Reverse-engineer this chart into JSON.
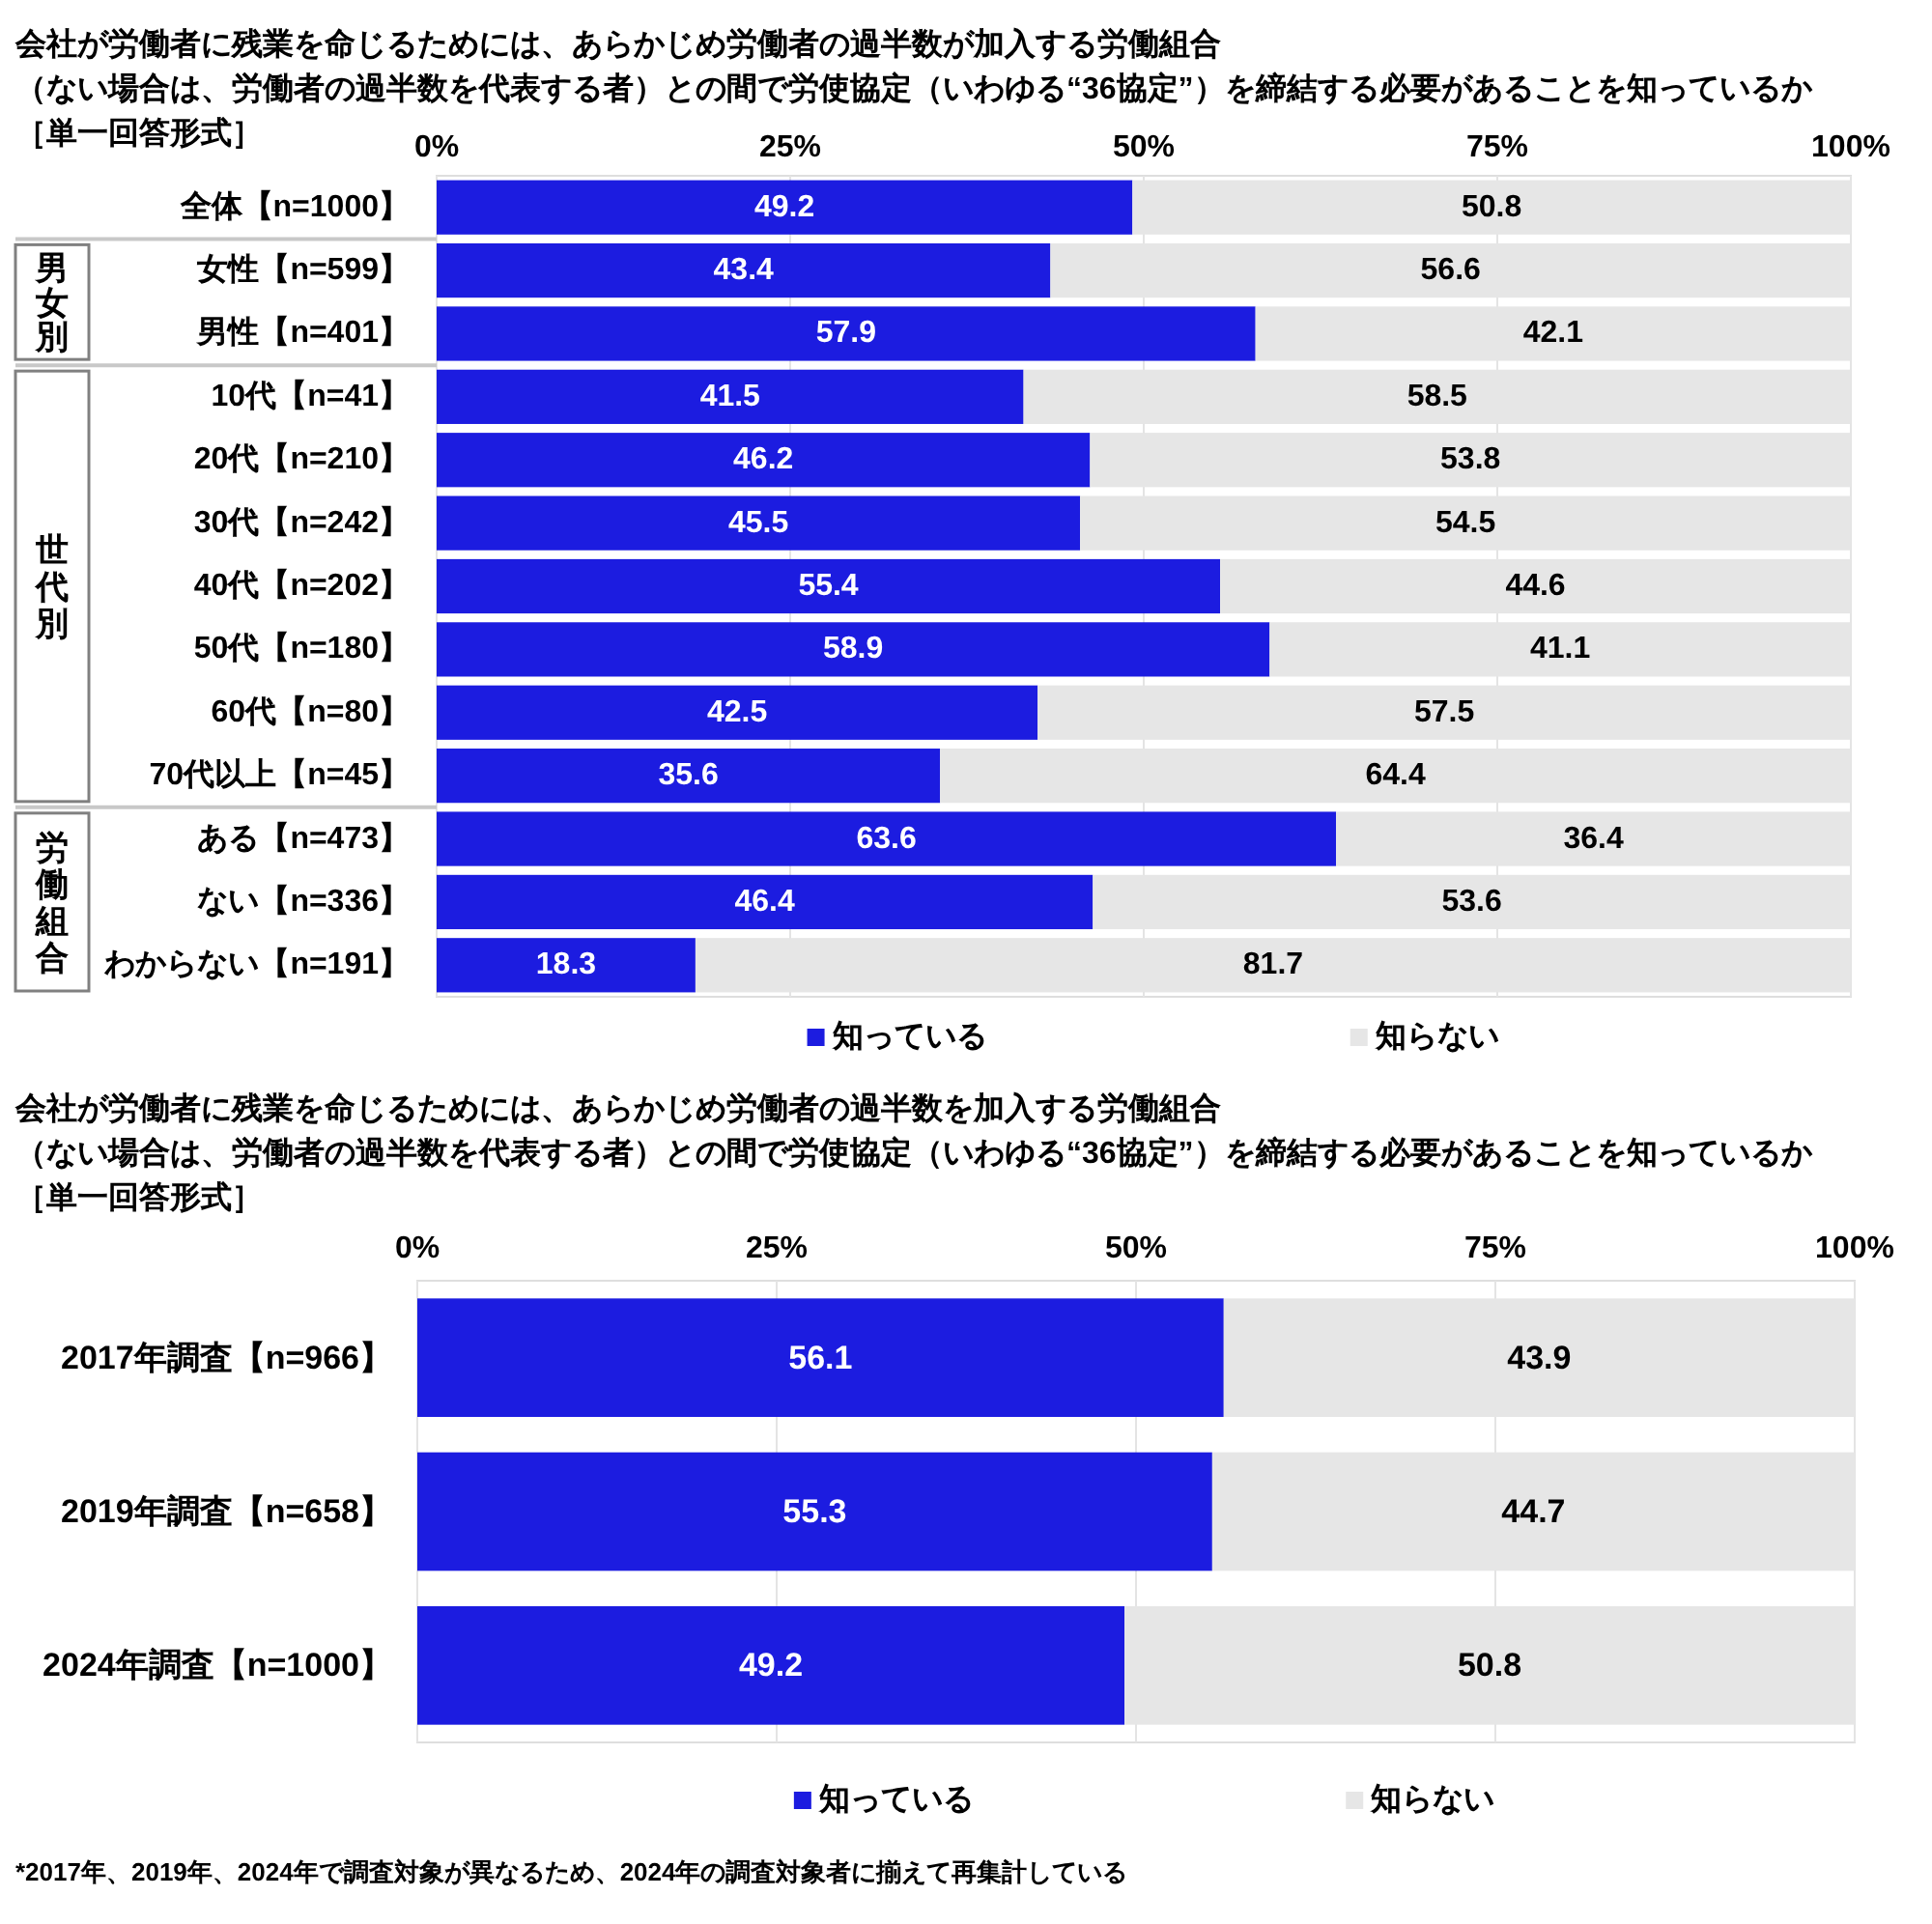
{
  "chart_data": [
    {
      "type": "bar",
      "orientation": "horizontal",
      "stacked": true,
      "title": "会社が労働者に残業を命じるためには、あらかじめ労働者の過半数が加入する労働組合（ない場合は、労働者の過半数を代表する者）との間で労使協定（いわゆる“36協定”）を締結する必要があることを知っているか",
      "subtitle": "［単一回答形式］",
      "categories": [
        "全体【n=1000】",
        "女性【n=599】",
        "男性【n=401】",
        "10代【n=41】",
        "20代【n=210】",
        "30代【n=242】",
        "40代【n=202】",
        "50代【n=180】",
        "60代【n=80】",
        "70代以上【n=45】",
        "ある【n=473】",
        "ない【n=336】",
        "わからない【n=191】"
      ],
      "series": [
        {
          "name": "知っている",
          "color": "#1c1ce0",
          "values": [
            49.2,
            43.4,
            57.9,
            41.5,
            46.2,
            45.5,
            55.4,
            58.9,
            42.5,
            35.6,
            63.6,
            46.4,
            18.3
          ]
        },
        {
          "name": "知らない",
          "color": "#e6e6e6",
          "values": [
            50.8,
            56.6,
            42.1,
            58.5,
            53.8,
            54.5,
            44.6,
            41.1,
            57.5,
            64.4,
            36.4,
            53.6,
            81.7
          ]
        }
      ],
      "xlim": [
        0,
        100
      ],
      "xticks": [
        {
          "value": 0,
          "label": "0%"
        },
        {
          "value": 25,
          "label": "25%"
        },
        {
          "value": 50,
          "label": "50%"
        },
        {
          "value": 75,
          "label": "75%"
        },
        {
          "value": 100,
          "label": "100%"
        }
      ],
      "grid": "x",
      "legend": "bottom",
      "data_labels": true,
      "annotations": [
        "男女別",
        "世代別",
        "労働組合"
      ]
    },
    {
      "type": "bar",
      "orientation": "horizontal",
      "stacked": true,
      "title": "会社が労働者に残業を命じるためには、あらかじめ労働者の過半数を加入する労働組合（ない場合は、労働者の過半数を代表する者）との間で労使協定（いわゆる“36協定”）を締結する必要があることを知っているか",
      "subtitle": "［単一回答形式］",
      "categories": [
        "2017年調査【n=966】",
        "2019年調査【n=658】",
        "2024年調査【n=1000】"
      ],
      "series": [
        {
          "name": "知っている",
          "color": "#1c1ce0",
          "values": [
            56.1,
            55.3,
            49.2
          ]
        },
        {
          "name": "知らない",
          "color": "#e6e6e6",
          "values": [
            43.9,
            44.7,
            50.8
          ]
        }
      ],
      "xlim": [
        0,
        100
      ],
      "xticks": [
        {
          "value": 0,
          "label": "0%"
        },
        {
          "value": 25,
          "label": "25%"
        },
        {
          "value": 50,
          "label": "50%"
        },
        {
          "value": 75,
          "label": "75%"
        },
        {
          "value": 100,
          "label": "100%"
        }
      ],
      "grid": "x",
      "legend": "bottom",
      "data_labels": true,
      "annotations": [
        "*2017年、2019年、2024年で調査対象が異なるため、2024年の調査対象者に揃えて再集計している"
      ]
    }
  ]
}
